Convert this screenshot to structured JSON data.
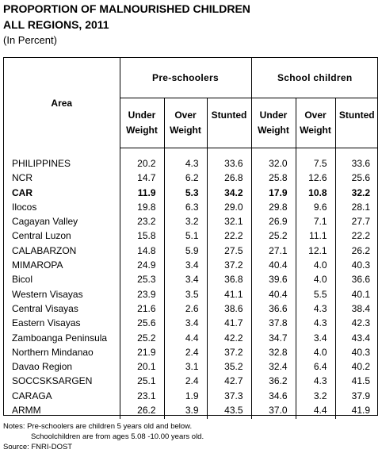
{
  "title_line1": "PROPORTION OF MALNOURISHED CHILDREN",
  "title_line2": "ALL REGIONS, 2011",
  "unit": "(In Percent)",
  "headers": {
    "area": "Area",
    "preschoolers": "Pre-schoolers",
    "schoolchildren": "School children",
    "under_weight_1": "Under",
    "under_weight_2": "Weight",
    "over_weight_1": "Over",
    "over_weight_2": "Weight",
    "stunted": "Stunted"
  },
  "rows": [
    {
      "area": "PHILIPPINES",
      "p_uw": "20.2",
      "p_ow": "4.3",
      "p_st": "33.6",
      "s_uw": "32.0",
      "s_ow": "7.5",
      "s_st": "33.6"
    },
    {
      "area": "NCR",
      "p_uw": "14.7",
      "p_ow": "6.2",
      "p_st": "26.8",
      "s_uw": "25.8",
      "s_ow": "12.6",
      "s_st": "25.6"
    },
    {
      "area": "CAR",
      "p_uw": "11.9",
      "p_ow": "5.3",
      "p_st": "34.2",
      "s_uw": "17.9",
      "s_ow": "10.8",
      "s_st": "32.2"
    },
    {
      "area": "Ilocos",
      "p_uw": "19.8",
      "p_ow": "6.3",
      "p_st": "29.0",
      "s_uw": "29.8",
      "s_ow": "9.6",
      "s_st": "28.1"
    },
    {
      "area": "Cagayan Valley",
      "p_uw": "23.2",
      "p_ow": "3.2",
      "p_st": "32.1",
      "s_uw": "26.9",
      "s_ow": "7.1",
      "s_st": "27.7"
    },
    {
      "area": "Central Luzon",
      "p_uw": "15.8",
      "p_ow": "5.1",
      "p_st": "22.2",
      "s_uw": "25.2",
      "s_ow": "11.1",
      "s_st": "22.2"
    },
    {
      "area": "CALABARZON",
      "p_uw": "14.8",
      "p_ow": "5.9",
      "p_st": "27.5",
      "s_uw": "27.1",
      "s_ow": "12.1",
      "s_st": "26.2"
    },
    {
      "area": "MIMAROPA",
      "p_uw": "24.9",
      "p_ow": "3.4",
      "p_st": "37.2",
      "s_uw": "40.4",
      "s_ow": "4.0",
      "s_st": "40.3"
    },
    {
      "area": "Bicol",
      "p_uw": "25.3",
      "p_ow": "3.4",
      "p_st": "36.8",
      "s_uw": "39.6",
      "s_ow": "4.0",
      "s_st": "36.6"
    },
    {
      "area": "Western Visayas",
      "p_uw": "23.9",
      "p_ow": "3.5",
      "p_st": "41.1",
      "s_uw": "40.4",
      "s_ow": "5.5",
      "s_st": "40.1"
    },
    {
      "area": "Central Visayas",
      "p_uw": "21.6",
      "p_ow": "2.6",
      "p_st": "38.6",
      "s_uw": "36.6",
      "s_ow": "4.3",
      "s_st": "38.4"
    },
    {
      "area": "Eastern Visayas",
      "p_uw": "25.6",
      "p_ow": "3.4",
      "p_st": "41.7",
      "s_uw": "37.8",
      "s_ow": "4.3",
      "s_st": "42.3"
    },
    {
      "area": "Zamboanga Peninsula",
      "p_uw": "25.2",
      "p_ow": "4.4",
      "p_st": "42.2",
      "s_uw": "34.7",
      "s_ow": "3.4",
      "s_st": "43.4"
    },
    {
      "area": "Northern Mindanao",
      "p_uw": "21.9",
      "p_ow": "2.4",
      "p_st": "37.2",
      "s_uw": "32.8",
      "s_ow": "4.0",
      "s_st": "40.3"
    },
    {
      "area": "Davao Region",
      "p_uw": "20.1",
      "p_ow": "3.1",
      "p_st": "35.2",
      "s_uw": "32.4",
      "s_ow": "6.4",
      "s_st": "40.2"
    },
    {
      "area": "SOCCSKSARGEN",
      "p_uw": "25.1",
      "p_ow": "2.4",
      "p_st": "42.7",
      "s_uw": "36.2",
      "s_ow": "4.3",
      "s_st": "41.5"
    },
    {
      "area": "CARAGA",
      "p_uw": "23.1",
      "p_ow": "1.9",
      "p_st": "37.3",
      "s_uw": "34.6",
      "s_ow": "3.2",
      "s_st": "37.9"
    },
    {
      "area": "ARMM",
      "p_uw": "26.2",
      "p_ow": "3.9",
      "p_st": "43.5",
      "s_uw": "37.0",
      "s_ow": "4.4",
      "s_st": "41.9"
    }
  ],
  "notes": {
    "line1": "Notes:  Pre-schoolers are children  5 years old and below.",
    "line2": "Schoolchildren are from ages 5.08 -10.00 years old.",
    "source": "Source: FNRI-DOST"
  }
}
